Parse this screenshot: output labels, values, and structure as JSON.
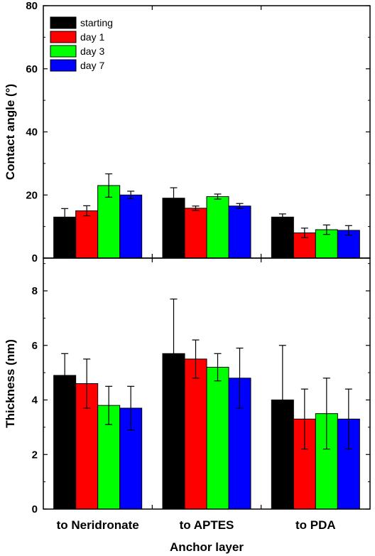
{
  "chart_data": [
    {
      "type": "bar",
      "categories": [
        "to Neridronate",
        "to APTES",
        "to PDA"
      ],
      "ylabel": "Contact angle (°)",
      "ylim": [
        0,
        80
      ],
      "yticks": [
        0,
        20,
        40,
        60,
        80
      ],
      "grid": false,
      "legend_placement": "top-left",
      "series": [
        {
          "name": "starting",
          "color": "#000000",
          "values": [
            13,
            19,
            13
          ],
          "errors": [
            2.7,
            3.3,
            1.0
          ]
        },
        {
          "name": "day 1",
          "color": "#ff0000",
          "values": [
            15,
            15.8,
            8
          ],
          "errors": [
            1.6,
            0.7,
            1.5
          ]
        },
        {
          "name": "day 3",
          "color": "#00ff00",
          "values": [
            23,
            19.5,
            9
          ],
          "errors": [
            3.7,
            0.8,
            1.5
          ]
        },
        {
          "name": "day 7",
          "color": "#0000ff",
          "values": [
            20,
            16.5,
            8.8
          ],
          "errors": [
            1.2,
            0.8,
            1.5
          ]
        }
      ]
    },
    {
      "type": "bar",
      "categories": [
        "to Neridronate",
        "to APTES",
        "to PDA"
      ],
      "xlabel": "Anchor layer",
      "ylabel": "Thickness (nm)",
      "ylim": [
        0,
        9.2
      ],
      "yticks": [
        0,
        2,
        4,
        6,
        8
      ],
      "grid": false,
      "series": [
        {
          "name": "starting",
          "color": "#000000",
          "values": [
            4.9,
            5.7,
            4.0
          ],
          "errors": [
            0.8,
            2.0,
            2.0
          ]
        },
        {
          "name": "day 1",
          "color": "#ff0000",
          "values": [
            4.6,
            5.5,
            3.3
          ],
          "errors": [
            0.9,
            0.7,
            1.1
          ]
        },
        {
          "name": "day 3",
          "color": "#00ff00",
          "values": [
            3.8,
            5.2,
            3.5
          ],
          "errors": [
            0.7,
            0.5,
            1.3
          ]
        },
        {
          "name": "day 7",
          "color": "#0000ff",
          "values": [
            3.7,
            4.8,
            3.3
          ],
          "errors": [
            0.8,
            1.1,
            1.1
          ]
        }
      ]
    }
  ]
}
